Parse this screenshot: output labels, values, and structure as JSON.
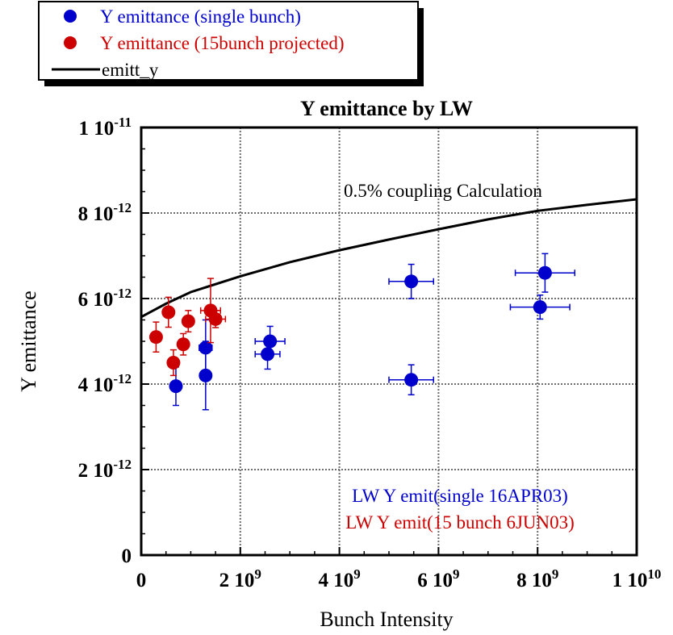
{
  "chart_data": {
    "type": "scatter",
    "title": "Y emittance by LW",
    "xlabel": "Bunch Intensity",
    "ylabel": "Y emittance",
    "xlim": [
      0,
      10000000000
    ],
    "ylim": [
      0,
      1e-11
    ],
    "grid": true,
    "x_ticks": [
      {
        "value": 0,
        "mantissa": "0",
        "exp": ""
      },
      {
        "value": 2000000000,
        "mantissa": "2 10",
        "exp": "9"
      },
      {
        "value": 4000000000,
        "mantissa": "4 10",
        "exp": "9"
      },
      {
        "value": 6000000000,
        "mantissa": "6 10",
        "exp": "9"
      },
      {
        "value": 8000000000,
        "mantissa": "8 10",
        "exp": "9"
      },
      {
        "value": 10000000000,
        "mantissa": "1 10",
        "exp": "10"
      }
    ],
    "y_ticks": [
      {
        "value": 0,
        "mantissa": "0",
        "exp": ""
      },
      {
        "value": 2e-12,
        "mantissa": "2 10",
        "exp": "-12"
      },
      {
        "value": 4e-12,
        "mantissa": "4 10",
        "exp": "-12"
      },
      {
        "value": 6e-12,
        "mantissa": "6 10",
        "exp": "-12"
      },
      {
        "value": 8e-12,
        "mantissa": "8 10",
        "exp": "-12"
      },
      {
        "value": 1e-11,
        "mantissa": "1 10",
        "exp": "-11"
      }
    ],
    "legend": {
      "placement": "top-left-outside",
      "entries": [
        {
          "label": "Y emittance (single bunch)",
          "color": "#0000cc",
          "marker": "circle"
        },
        {
          "label": "Y emittance (15bunch projected)",
          "color": "#cc0000",
          "marker": "circle"
        },
        {
          "label": "emitt_y",
          "color": "#000000",
          "marker": "line"
        }
      ]
    },
    "annotations": [
      {
        "text": "0.5% coupling Calculation",
        "color": "#000000"
      },
      {
        "text": "LW Y emit(single 16APR03)",
        "color": "#0000cc"
      },
      {
        "text": "LW Y emit(15 bunch 6JUN03)",
        "color": "#cc0000"
      }
    ],
    "series": [
      {
        "name": "Y emittance (single bunch)",
        "color": "#0000cc",
        "points": [
          {
            "x": 700000000,
            "y": 3.95e-12,
            "xerr": 100000000,
            "yerr": 4.5e-13
          },
          {
            "x": 1300000000,
            "y": 4.2e-12,
            "xerr": 100000000,
            "yerr": 8e-13
          },
          {
            "x": 1300000000,
            "y": 4.85e-12,
            "xerr": 130000000,
            "yerr": 6.5e-13
          },
          {
            "x": 2550000000,
            "y": 4.7e-12,
            "xerr": 250000000,
            "yerr": 3.5e-13
          },
          {
            "x": 2600000000,
            "y": 5e-12,
            "xerr": 300000000,
            "yerr": 3.5e-13
          },
          {
            "x": 5450000000,
            "y": 4.1e-12,
            "xerr": 450000000,
            "yerr": 3.5e-13
          },
          {
            "x": 5450000000,
            "y": 6.4e-12,
            "xerr": 450000000,
            "yerr": 4e-13
          },
          {
            "x": 8050000000,
            "y": 5.8e-12,
            "xerr": 600000000,
            "yerr": 2.8e-13
          },
          {
            "x": 8150000000,
            "y": 6.6e-12,
            "xerr": 600000000,
            "yerr": 4.5e-13
          }
        ]
      },
      {
        "name": "Y emittance (15bunch projected)",
        "color": "#cc0000",
        "points": [
          {
            "x": 300000000,
            "y": 5.1e-12,
            "xerr": 0,
            "yerr": 3.5e-13
          },
          {
            "x": 550000000,
            "y": 5.68e-12,
            "xerr": 0,
            "yerr": 3.5e-13
          },
          {
            "x": 650000000,
            "y": 4.5e-12,
            "xerr": 0,
            "yerr": 3e-13
          },
          {
            "x": 850000000,
            "y": 4.93e-12,
            "xerr": 0,
            "yerr": 2.5e-13
          },
          {
            "x": 950000000,
            "y": 5.47e-12,
            "xerr": 0,
            "yerr": 2.5e-13
          },
          {
            "x": 1400000000,
            "y": 5.72e-12,
            "xerr": 200000000,
            "yerr": 7.5e-13
          },
          {
            "x": 1500000000,
            "y": 5.52e-12,
            "xerr": 200000000,
            "yerr": 2e-13
          }
        ]
      },
      {
        "name": "emitt_y",
        "color": "#000000",
        "line": [
          {
            "x": 0,
            "y": 5.57e-12
          },
          {
            "x": 500000000,
            "y": 5.88e-12
          },
          {
            "x": 1000000000,
            "y": 6.15e-12
          },
          {
            "x": 2000000000,
            "y": 6.52e-12
          },
          {
            "x": 3000000000,
            "y": 6.85e-12
          },
          {
            "x": 4000000000,
            "y": 7.13e-12
          },
          {
            "x": 5000000000,
            "y": 7.38e-12
          },
          {
            "x": 6000000000,
            "y": 7.62e-12
          },
          {
            "x": 7000000000,
            "y": 7.85e-12
          },
          {
            "x": 8000000000,
            "y": 8.05e-12
          },
          {
            "x": 9000000000,
            "y": 8.19e-12
          },
          {
            "x": 10000000000,
            "y": 8.32e-12
          }
        ]
      }
    ]
  }
}
